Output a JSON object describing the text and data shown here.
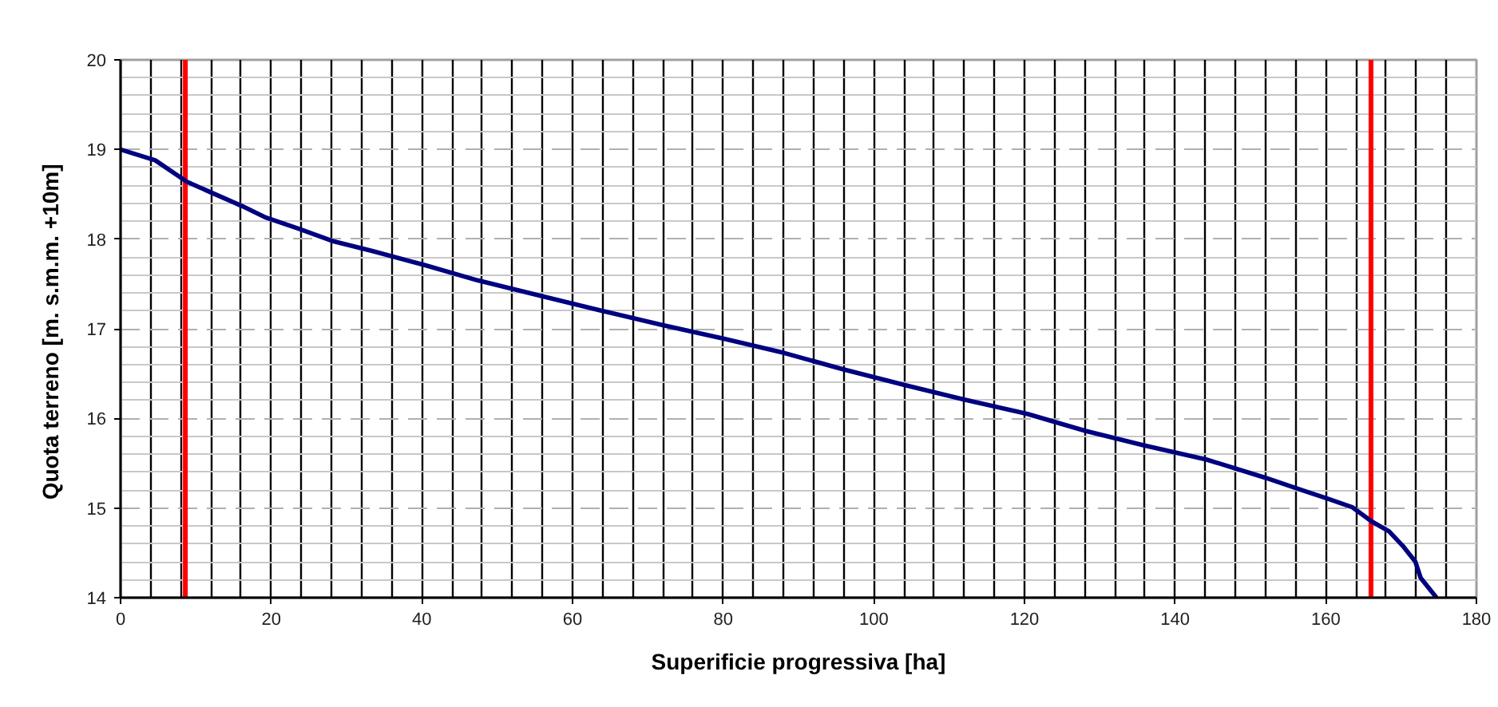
{
  "chart_data": {
    "type": "line",
    "xlabel": "Superificie progressiva [ha]",
    "ylabel": "Quota terreno [m. s.m.m.  +10m]",
    "x": [
      0,
      4.6,
      8.8,
      12.3,
      16.1,
      19.3,
      23.5,
      28.1,
      33.3,
      40.4,
      47.4,
      56.1,
      63.9,
      72,
      80,
      88.1,
      95.8,
      104.2,
      112,
      120.4,
      128.1,
      135.8,
      144.2,
      151.9,
      156.8,
      160.4,
      163.5,
      166.1,
      168.4,
      170.2,
      171.9,
      172.6,
      174.7
    ],
    "series": [
      {
        "color": "#000080",
        "values": [
          19.0,
          18.88,
          18.64,
          18.51,
          18.37,
          18.24,
          18.12,
          17.98,
          17.87,
          17.71,
          17.54,
          17.36,
          17.2,
          17.04,
          16.89,
          16.73,
          16.55,
          16.37,
          16.21,
          16.05,
          15.86,
          15.7,
          15.54,
          15.34,
          15.2,
          15.1,
          15.01,
          14.85,
          14.74,
          14.58,
          14.4,
          14.22,
          14.0
        ]
      }
    ],
    "xlim": [
      0,
      180
    ],
    "ylim": [
      14,
      20
    ],
    "xticks": [
      0,
      20,
      40,
      60,
      80,
      100,
      120,
      140,
      160,
      180
    ],
    "yticks": [
      14,
      15,
      16,
      17,
      18,
      19,
      20
    ],
    "grid": true,
    "line_style": "solid",
    "ref_lines": [
      {
        "axis": "x",
        "value": 8.6,
        "color": "#ff0000"
      },
      {
        "axis": "x",
        "value": 166,
        "color": "#ff0000"
      }
    ]
  }
}
